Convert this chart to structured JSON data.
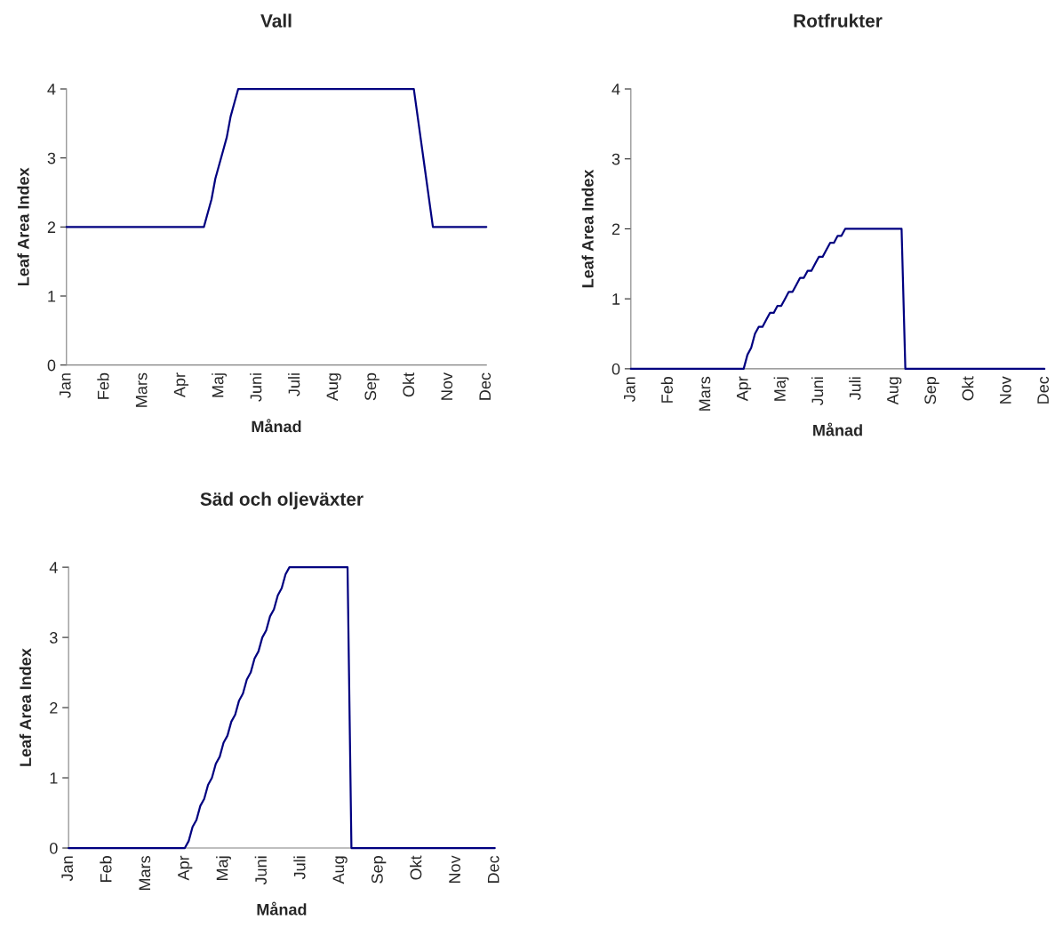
{
  "chart_data": [
    {
      "type": "line",
      "title": "Vall",
      "xlabel": "Månad",
      "ylabel": "Leaf Area Index",
      "color": "#000080",
      "categories": [
        "Jan",
        null,
        null,
        null,
        null,
        null,
        null,
        null,
        null,
        null,
        "Feb",
        null,
        null,
        null,
        null,
        null,
        null,
        null,
        null,
        null,
        "Mars",
        null,
        null,
        null,
        null,
        null,
        null,
        null,
        null,
        null,
        "Apr",
        null,
        null,
        null,
        null,
        null,
        null,
        null,
        null,
        null,
        "Maj",
        null,
        null,
        null,
        null,
        null,
        null,
        null,
        null,
        null,
        "Juni",
        null,
        null,
        null,
        null,
        null,
        null,
        null,
        null,
        null,
        "Juli",
        null,
        null,
        null,
        null,
        null,
        null,
        null,
        null,
        null,
        "Aug",
        null,
        null,
        null,
        null,
        null,
        null,
        null,
        null,
        null,
        "Sep",
        null,
        null,
        null,
        null,
        null,
        null,
        null,
        null,
        null,
        "Okt",
        null,
        null,
        null,
        null,
        null,
        null,
        null,
        null,
        null,
        "Nov",
        null,
        null,
        null,
        null,
        null,
        null,
        null,
        null,
        null,
        "Dec"
      ],
      "values": [
        2,
        2,
        2,
        2,
        2,
        2,
        2,
        2,
        2,
        2,
        2,
        2,
        2,
        2,
        2,
        2,
        2,
        2,
        2,
        2,
        2,
        2,
        2,
        2,
        2,
        2,
        2,
        2,
        2,
        2,
        2,
        2,
        2,
        2,
        2,
        2,
        2,
        2.2,
        2.4,
        2.7,
        2.9,
        3.1,
        3.3,
        3.6,
        3.8,
        4,
        4,
        4,
        4,
        4,
        4,
        4,
        4,
        4,
        4,
        4,
        4,
        4,
        4,
        4,
        4,
        4,
        4,
        4,
        4,
        4,
        4,
        4,
        4,
        4,
        4,
        4,
        4,
        4,
        4,
        4,
        4,
        4,
        4,
        4,
        4,
        4,
        4,
        4,
        4,
        4,
        4,
        4,
        4,
        4,
        4,
        4,
        3.6,
        3.2,
        2.8,
        2.4,
        2,
        2,
        2,
        2,
        2,
        2,
        2,
        2,
        2,
        2,
        2,
        2,
        2,
        2,
        2
      ],
      "ylim": [
        0,
        4
      ],
      "yticks": [
        0,
        1,
        2,
        3,
        4
      ]
    },
    {
      "type": "line",
      "title": "Rotfrukter",
      "xlabel": "Månad",
      "ylabel": "Leaf Area Index",
      "color": "#000080",
      "categories": [
        "Jan",
        null,
        null,
        null,
        null,
        null,
        null,
        null,
        null,
        null,
        "Feb",
        null,
        null,
        null,
        null,
        null,
        null,
        null,
        null,
        null,
        "Mars",
        null,
        null,
        null,
        null,
        null,
        null,
        null,
        null,
        null,
        "Apr",
        null,
        null,
        null,
        null,
        null,
        null,
        null,
        null,
        null,
        "Maj",
        null,
        null,
        null,
        null,
        null,
        null,
        null,
        null,
        null,
        "Juni",
        null,
        null,
        null,
        null,
        null,
        null,
        null,
        null,
        null,
        "Juli",
        null,
        null,
        null,
        null,
        null,
        null,
        null,
        null,
        null,
        "Aug",
        null,
        null,
        null,
        null,
        null,
        null,
        null,
        null,
        null,
        "Sep",
        null,
        null,
        null,
        null,
        null,
        null,
        null,
        null,
        null,
        "Okt",
        null,
        null,
        null,
        null,
        null,
        null,
        null,
        null,
        null,
        "Nov",
        null,
        null,
        null,
        null,
        null,
        null,
        null,
        null,
        null,
        "Dec"
      ],
      "values": [
        0,
        0,
        0,
        0,
        0,
        0,
        0,
        0,
        0,
        0,
        0,
        0,
        0,
        0,
        0,
        0,
        0,
        0,
        0,
        0,
        0,
        0,
        0,
        0,
        0,
        0,
        0,
        0,
        0,
        0,
        0,
        0.2,
        0.3,
        0.5,
        0.6,
        0.6,
        0.7,
        0.8,
        0.8,
        0.9,
        0.9,
        1.0,
        1.1,
        1.1,
        1.2,
        1.3,
        1.3,
        1.4,
        1.4,
        1.5,
        1.6,
        1.6,
        1.7,
        1.8,
        1.8,
        1.9,
        1.9,
        2,
        2,
        2,
        2,
        2,
        2,
        2,
        2,
        2,
        2,
        2,
        2,
        2,
        2,
        2,
        2,
        0,
        0,
        0,
        0,
        0,
        0,
        0,
        0,
        0,
        0,
        0,
        0,
        0,
        0,
        0,
        0,
        0,
        0,
        0,
        0,
        0,
        0,
        0,
        0,
        0,
        0,
        0,
        0,
        0,
        0,
        0,
        0,
        0,
        0,
        0,
        0,
        0,
        0
      ],
      "ylim": [
        0,
        4
      ],
      "yticks": [
        0,
        1,
        2,
        3,
        4
      ]
    },
    {
      "type": "line",
      "title": "Säd och oljeväxter",
      "xlabel": "Månad",
      "ylabel": "Leaf Area Index",
      "color": "#000080",
      "categories": [
        "Jan",
        null,
        null,
        null,
        null,
        null,
        null,
        null,
        null,
        null,
        "Feb",
        null,
        null,
        null,
        null,
        null,
        null,
        null,
        null,
        null,
        "Mars",
        null,
        null,
        null,
        null,
        null,
        null,
        null,
        null,
        null,
        "Apr",
        null,
        null,
        null,
        null,
        null,
        null,
        null,
        null,
        null,
        "Maj",
        null,
        null,
        null,
        null,
        null,
        null,
        null,
        null,
        null,
        "Juni",
        null,
        null,
        null,
        null,
        null,
        null,
        null,
        null,
        null,
        "Juli",
        null,
        null,
        null,
        null,
        null,
        null,
        null,
        null,
        null,
        "Aug",
        null,
        null,
        null,
        null,
        null,
        null,
        null,
        null,
        null,
        "Sep",
        null,
        null,
        null,
        null,
        null,
        null,
        null,
        null,
        null,
        "Okt",
        null,
        null,
        null,
        null,
        null,
        null,
        null,
        null,
        null,
        "Nov",
        null,
        null,
        null,
        null,
        null,
        null,
        null,
        null,
        null,
        "Dec"
      ],
      "values": [
        0,
        0,
        0,
        0,
        0,
        0,
        0,
        0,
        0,
        0,
        0,
        0,
        0,
        0,
        0,
        0,
        0,
        0,
        0,
        0,
        0,
        0,
        0,
        0,
        0,
        0,
        0,
        0,
        0,
        0,
        0,
        0.1,
        0.3,
        0.4,
        0.6,
        0.7,
        0.9,
        1.0,
        1.2,
        1.3,
        1.5,
        1.6,
        1.8,
        1.9,
        2.1,
        2.2,
        2.4,
        2.5,
        2.7,
        2.8,
        3.0,
        3.1,
        3.3,
        3.4,
        3.6,
        3.7,
        3.9,
        4,
        4,
        4,
        4,
        4,
        4,
        4,
        4,
        4,
        4,
        4,
        4,
        4,
        4,
        4,
        4,
        0,
        0,
        0,
        0,
        0,
        0,
        0,
        0,
        0,
        0,
        0,
        0,
        0,
        0,
        0,
        0,
        0,
        0,
        0,
        0,
        0,
        0,
        0,
        0,
        0,
        0,
        0,
        0,
        0,
        0,
        0,
        0,
        0,
        0,
        0,
        0,
        0,
        0
      ],
      "ylim": [
        0,
        4
      ],
      "yticks": [
        0,
        1,
        2,
        3,
        4
      ]
    }
  ]
}
